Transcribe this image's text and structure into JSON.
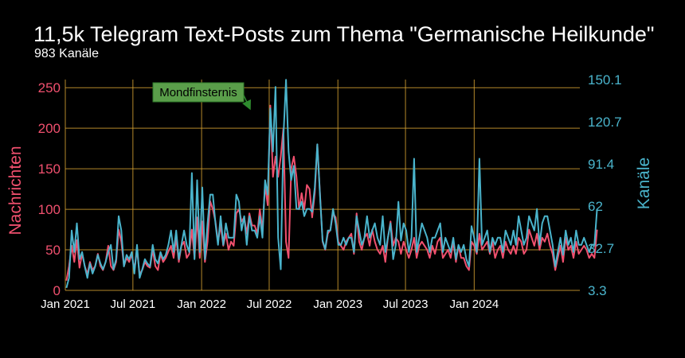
{
  "header": {
    "title": "11,5k Telegram Text-Posts zum Thema \"Germanische Heilkunde\"",
    "subtitle": "983 Kanäle"
  },
  "colors": {
    "messages": "#f0506e",
    "channels": "#4ab4cc",
    "grid": "#d4a032",
    "annotation_fill": "#5a9e4a",
    "annotation_border": "#2f7a2a",
    "arrow": "#2e8b2e"
  },
  "chart_data": {
    "type": "line",
    "title": "11,5k Telegram Text-Posts zum Thema \"Germanische Heilkunde\"",
    "subtitle": "983 Kanäle",
    "ylabel_left": "Nachrichten",
    "ylabel_right": "Kanäle",
    "x_tick_labels": [
      "Jan 2021",
      "Jul 2021",
      "Jan 2022",
      "Jul 2022",
      "Jan 2023",
      "Jul 2023",
      "Jan 2024"
    ],
    "x_range": [
      "2021-01-01",
      "2024-10-10"
    ],
    "ylim_left": [
      0,
      260
    ],
    "yticks_left": [
      "0",
      "50",
      "100",
      "150",
      "200",
      "250"
    ],
    "ylim_right": [
      3.3,
      150.1
    ],
    "yticks_right": [
      "3.3",
      "32.7",
      "62",
      "91.4",
      "120.7",
      "150.1"
    ],
    "grid": true,
    "x_step_weeks": 1,
    "start_date": "2021-01-04",
    "annotation": {
      "text": "Mondfinsternis",
      "target_date": "2022-05-16",
      "target_value": 228
    },
    "series": [
      {
        "name": "Nachrichten",
        "axis": "left",
        "values": [
          12,
          30,
          55,
          35,
          62,
          28,
          45,
          30,
          20,
          35,
          25,
          30,
          45,
          30,
          25,
          35,
          55,
          30,
          25,
          35,
          75,
          60,
          30,
          40,
          35,
          45,
          25,
          50,
          20,
          25,
          35,
          30,
          28,
          50,
          30,
          25,
          45,
          35,
          40,
          48,
          55,
          40,
          65,
          35,
          55,
          60,
          40,
          45,
          75,
          40,
          90,
          40,
          85,
          35,
          60,
          110,
          100,
          85,
          60,
          80,
          55,
          70,
          50,
          60,
          55,
          95,
          100,
          85,
          90,
          70,
          95,
          80,
          80,
          70,
          100,
          75,
          130,
          105,
          228,
          140,
          165,
          140,
          165,
          200,
          60,
          40,
          150,
          165,
          140,
          100,
          120,
          100,
          130,
          125,
          90,
          120,
          180,
          120,
          60,
          50,
          70,
          75,
          95,
          90,
          60,
          55,
          50,
          60,
          65,
          70,
          45,
          95,
          60,
          50,
          65,
          70,
          55,
          75,
          60,
          50,
          45,
          55,
          35,
          65,
          85,
          55,
          65,
          60,
          45,
          60,
          50,
          40,
          50,
          65,
          40,
          55,
          60,
          55,
          50,
          40,
          55,
          45,
          60,
          65,
          40,
          45,
          50,
          40,
          60,
          35,
          55,
          40,
          40,
          30,
          25,
          60,
          55,
          45,
          70,
          50,
          55,
          60,
          45,
          60,
          40,
          50,
          55,
          40,
          60,
          50,
          45,
          55,
          45,
          65,
          60,
          45,
          50,
          75,
          65,
          55,
          70,
          50,
          65,
          60,
          70,
          55,
          45,
          25,
          40,
          55,
          35,
          65,
          50,
          55,
          40,
          60,
          45,
          50,
          55,
          50,
          40,
          45,
          40,
          75
        ]
      },
      {
        "name": "Kanäle",
        "axis": "right",
        "values": [
          5,
          12,
          45,
          30,
          50,
          25,
          30,
          20,
          12,
          22,
          15,
          20,
          28,
          22,
          18,
          23,
          30,
          35,
          18,
          25,
          55,
          45,
          20,
          28,
          25,
          30,
          15,
          35,
          12,
          18,
          25,
          22,
          20,
          35,
          25,
          22,
          30,
          25,
          28,
          35,
          45,
          30,
          45,
          25,
          35,
          45,
          35,
          30,
          85,
          25,
          80,
          30,
          75,
          25,
          50,
          70,
          70,
          50,
          35,
          55,
          35,
          50,
          40,
          40,
          40,
          70,
          65,
          45,
          55,
          35,
          55,
          45,
          45,
          40,
          55,
          40,
          80,
          70,
          130,
          100,
          145,
          40,
          18,
          110,
          150,
          100,
          80,
          90,
          60,
          60,
          65,
          55,
          60,
          60,
          58,
          75,
          105,
          70,
          38,
          32,
          45,
          45,
          60,
          50,
          35,
          35,
          40,
          35,
          40,
          40,
          30,
          55,
          45,
          35,
          40,
          55,
          40,
          45,
          50,
          40,
          35,
          55,
          30,
          40,
          50,
          25,
          35,
          65,
          38,
          50,
          45,
          30,
          40,
          95,
          30,
          40,
          50,
          45,
          40,
          30,
          40,
          40,
          45,
          50,
          30,
          40,
          35,
          30,
          40,
          25,
          35,
          30,
          35,
          25,
          20,
          48,
          40,
          30,
          95,
          35,
          40,
          45,
          30,
          40,
          35,
          40,
          40,
          30,
          45,
          40,
          35,
          45,
          35,
          55,
          45,
          35,
          40,
          55,
          50,
          45,
          60,
          35,
          50,
          55,
          55,
          45,
          35,
          20,
          30,
          40,
          28,
          45,
          35,
          40,
          30,
          45,
          35,
          35,
          40,
          35,
          30,
          35,
          35,
          60
        ]
      }
    ]
  }
}
